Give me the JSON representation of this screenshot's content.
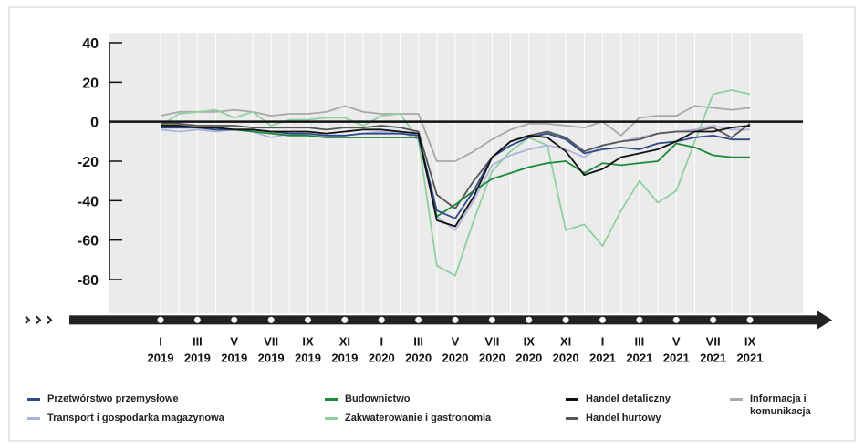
{
  "chart_data": {
    "type": "line",
    "categories": [
      [
        "I",
        "2019"
      ],
      null,
      [
        "III",
        "2019"
      ],
      null,
      [
        "V",
        "2019"
      ],
      null,
      [
        "VII",
        "2019"
      ],
      null,
      [
        "IX",
        "2019"
      ],
      null,
      [
        "XI",
        "2019"
      ],
      null,
      [
        "I",
        "2020"
      ],
      null,
      [
        "III",
        "2020"
      ],
      null,
      [
        "V",
        "2020"
      ],
      null,
      [
        "VII",
        "2020"
      ],
      null,
      [
        "IX",
        "2020"
      ],
      null,
      [
        "XI",
        "2020"
      ],
      null,
      [
        "I",
        "2021"
      ],
      null,
      [
        "III",
        "2021"
      ],
      null,
      [
        "V",
        "2021"
      ],
      null,
      [
        "VII",
        "2021"
      ],
      null,
      [
        "IX",
        "2021"
      ]
    ],
    "ylim": [
      -100,
      45
    ],
    "yticks": [
      40,
      20,
      0,
      -20,
      -40,
      -60,
      -80
    ],
    "series": [
      {
        "name": "Informacja i komunikacja",
        "color": "#a8a8a8",
        "values": [
          3,
          5,
          5,
          5,
          6,
          5,
          3,
          4,
          4,
          5,
          8,
          5,
          4,
          4,
          4,
          -20,
          -20,
          -15,
          -9,
          -4,
          -1,
          -1,
          -2,
          -3,
          0,
          -7,
          2,
          3,
          3,
          8,
          7,
          6,
          7
        ]
      },
      {
        "name": "Zakwaterowanie i gastronomia",
        "color": "#8fd19e",
        "values": [
          -2,
          4,
          5,
          6,
          2,
          5,
          -2,
          1,
          1,
          2,
          2,
          -2,
          3,
          4,
          -9,
          -73,
          -78,
          -50,
          -25,
          -15,
          -8,
          -12,
          -55,
          -52,
          -63,
          -45,
          -30,
          -41,
          -35,
          -10,
          14,
          16,
          14
        ]
      },
      {
        "name": "Transport i gospodarka magazynowa",
        "color": "#aeb3dd",
        "values": [
          -4,
          -5,
          -4,
          -5,
          -4,
          -5,
          -8,
          -6,
          -7,
          -8,
          -7,
          -6,
          -5,
          -5,
          -9,
          -48,
          -55,
          -40,
          -22,
          -17,
          -14,
          -12,
          -14,
          -18,
          -12,
          -10,
          -8,
          -6,
          -5,
          -4,
          -2,
          -4,
          -4
        ]
      },
      {
        "name": "Handel hurtowy",
        "color": "#555555",
        "values": [
          -1,
          -1,
          -2,
          -2,
          -2,
          -3,
          -3,
          -3,
          -3,
          -4,
          -3,
          -3,
          -2,
          -3,
          -5,
          -37,
          -44,
          -30,
          -18,
          -10,
          -7,
          -5,
          -8,
          -15,
          -12,
          -10,
          -9,
          -6,
          -5,
          -5,
          -3,
          -8,
          -1
        ]
      },
      {
        "name": "Budownictwo",
        "color": "#1a8a3a",
        "values": [
          -2,
          -2,
          -3,
          -4,
          -4,
          -5,
          -6,
          -7,
          -7,
          -8,
          -8,
          -8,
          -8,
          -8,
          -8,
          -48,
          -42,
          -35,
          -29,
          -26,
          -23,
          -21,
          -20,
          -26,
          -21,
          -22,
          -21,
          -20,
          -11,
          -13,
          -17,
          -18,
          -18
        ]
      },
      {
        "name": "Przetwórstwo przemysłowe",
        "color": "#2e4a8a",
        "values": [
          -3,
          -3,
          -3,
          -4,
          -4,
          -4,
          -5,
          -6,
          -6,
          -7,
          -7,
          -6,
          -6,
          -6,
          -7,
          -45,
          -49,
          -35,
          -18,
          -12,
          -8,
          -6,
          -9,
          -16,
          -14,
          -13,
          -14,
          -11,
          -10,
          -8,
          -7,
          -9,
          -9
        ]
      },
      {
        "name": "Handel detaliczny",
        "color": "#111111",
        "values": [
          -2,
          -2,
          -3,
          -3,
          -4,
          -4,
          -5,
          -5,
          -5,
          -6,
          -5,
          -4,
          -4,
          -5,
          -6,
          -50,
          -53,
          -38,
          -18,
          -10,
          -7,
          -8,
          -15,
          -27,
          -24,
          -18,
          -16,
          -14,
          -10,
          -5,
          -5,
          -3,
          -2
        ]
      }
    ]
  }
}
